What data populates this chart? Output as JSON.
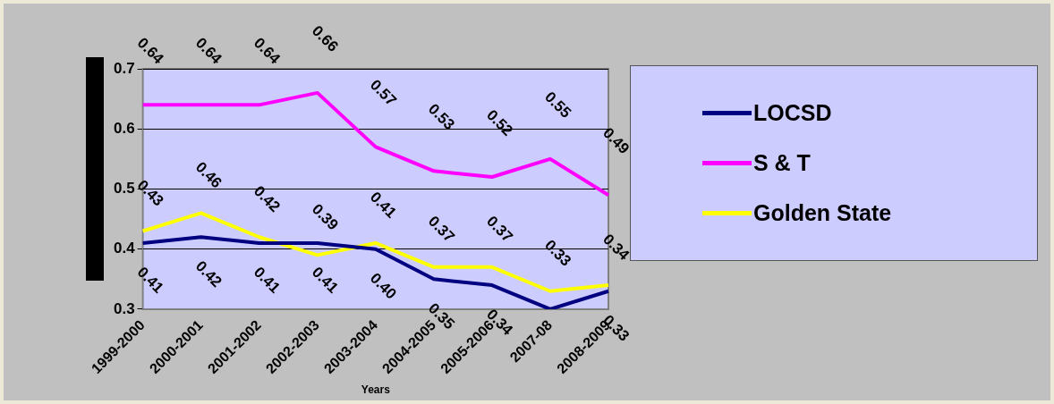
{
  "chart_data": {
    "type": "line",
    "xlabel": "Years",
    "categories": [
      "1999-2000",
      "2000-2001",
      "2001-2002",
      "2002-2003",
      "2003-2004",
      "2004-2005",
      "2005-2006",
      "2007-08",
      "2008-2009"
    ],
    "series": [
      {
        "name": "LOCSD",
        "color": "#000080",
        "values": [
          0.41,
          0.42,
          0.41,
          0.41,
          0.4,
          0.35,
          0.34,
          0.3,
          0.33
        ],
        "value_labels": [
          "0.41",
          "0.42",
          "0.41",
          "0.41",
          "0.40",
          "0.35",
          "0.34",
          null,
          "0.33"
        ]
      },
      {
        "name": "S & T",
        "color": "#ff00ff",
        "values": [
          0.64,
          0.64,
          0.64,
          0.66,
          0.57,
          0.53,
          0.52,
          0.55,
          0.49
        ],
        "value_labels": [
          "0.64",
          "0.64",
          "0.64",
          "0.66",
          "0.57",
          "0.53",
          "0.52",
          "0.55",
          "0.49"
        ]
      },
      {
        "name": "Golden State",
        "color": "#ffff00",
        "values": [
          0.43,
          0.46,
          0.42,
          0.39,
          0.41,
          0.37,
          0.37,
          0.33,
          0.34
        ],
        "value_labels": [
          "0.43",
          "0.46",
          "0.42",
          "0.39",
          "0.41",
          "0.37",
          "0.37",
          "0.33",
          "0.34"
        ]
      }
    ],
    "ylim": [
      0.3,
      0.7
    ],
    "yticks": [
      0.3,
      0.4,
      0.5,
      0.6,
      0.7
    ],
    "grid": "y",
    "legend": "right",
    "marker": "none",
    "line_style": "solid"
  }
}
